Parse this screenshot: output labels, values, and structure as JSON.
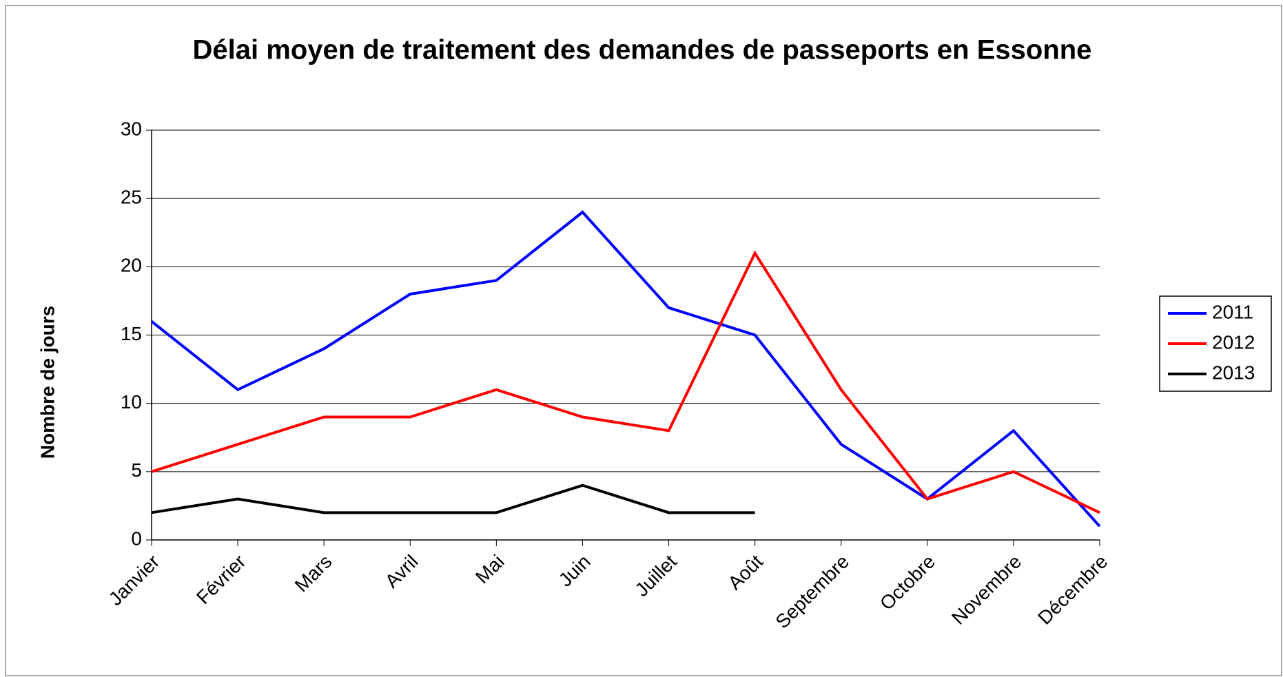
{
  "chart_data": {
    "type": "line",
    "title": "Délai moyen de traitement des demandes de passeports en Essonne",
    "y_label": "Nombre de jours",
    "categories": [
      "Janvier",
      "Février",
      "Mars",
      "Avril",
      "Mai",
      "Juin",
      "Juillet",
      "Août",
      "Septembre",
      "Octobre",
      "Novembre",
      "Décembre"
    ],
    "series": [
      {
        "name": "2011",
        "color": "#0000ff",
        "values": [
          16,
          11,
          14,
          18,
          19,
          24,
          17,
          15,
          7,
          3,
          8,
          1
        ]
      },
      {
        "name": "2012",
        "color": "#ff0000",
        "values": [
          5,
          7,
          9,
          9,
          11,
          9,
          8,
          21,
          11,
          3,
          5,
          2
        ]
      },
      {
        "name": "2013",
        "color": "#000000",
        "values": [
          2,
          3,
          2,
          2,
          2,
          4,
          2,
          2,
          null,
          null,
          null,
          null
        ]
      }
    ],
    "ylim": [
      0,
      30
    ],
    "yticks": [
      0,
      5,
      10,
      15,
      20,
      25,
      30
    ],
    "grid": true,
    "legend": "right"
  }
}
